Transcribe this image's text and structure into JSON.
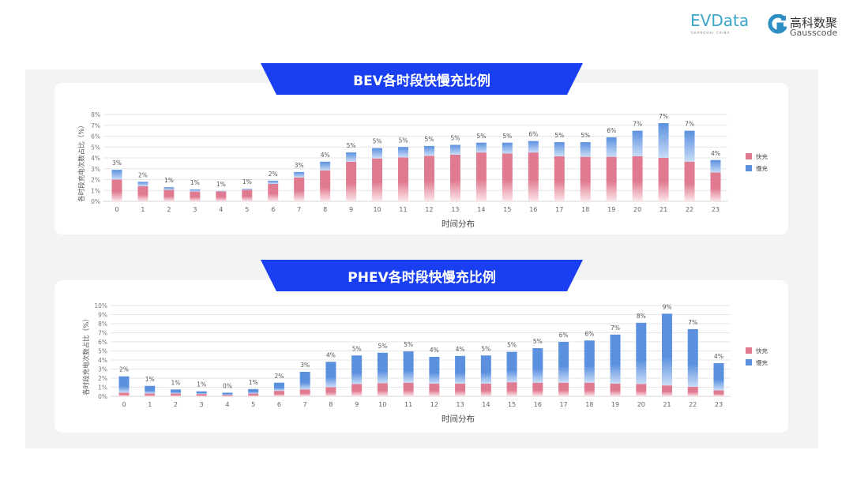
{
  "logos": {
    "evdata": "EVData",
    "evdata_sub": "SHANGHAI CHINA",
    "gauss_cn": "高科数聚",
    "gauss_en": "Gausscode"
  },
  "colors": {
    "fast": "#e07a90",
    "slow": "#5b90df",
    "banner": "#1a3ff0"
  },
  "chart_data": [
    {
      "type": "bar",
      "stacked": true,
      "title": "BEV各时段快慢充比例",
      "xlabel": "时间分布",
      "ylabel": "各时段充电次数占比（%）",
      "ylim": [
        0,
        8
      ],
      "yticks": [
        "0%",
        "1%",
        "2%",
        "3%",
        "4%",
        "5%",
        "6%",
        "7%",
        "8%"
      ],
      "grid": true,
      "legend_position": "right",
      "categories": [
        "0",
        "1",
        "2",
        "3",
        "4",
        "5",
        "6",
        "7",
        "8",
        "9",
        "10",
        "11",
        "12",
        "13",
        "14",
        "15",
        "16",
        "17",
        "18",
        "19",
        "20",
        "21",
        "22",
        "23"
      ],
      "series": [
        {
          "name": "快充",
          "values": [
            2.0,
            1.4,
            1.05,
            0.9,
            0.9,
            1.05,
            1.6,
            2.2,
            2.85,
            3.65,
            3.95,
            4.05,
            4.2,
            4.3,
            4.5,
            4.4,
            4.5,
            4.15,
            4.1,
            4.1,
            4.15,
            4.0,
            3.65,
            2.65
          ]
        },
        {
          "name": "慢充",
          "values": [
            0.9,
            0.4,
            0.25,
            0.2,
            0.05,
            0.1,
            0.3,
            0.5,
            0.8,
            0.85,
            0.95,
            0.95,
            0.9,
            0.9,
            0.9,
            1.0,
            1.05,
            1.3,
            1.35,
            1.8,
            2.35,
            3.2,
            2.85,
            1.15
          ]
        }
      ],
      "data_labels": [
        "3%",
        "2%",
        "1%",
        "1%",
        "1%",
        "1%",
        "2%",
        "3%",
        "4%",
        "5%",
        "5%",
        "5%",
        "5%",
        "5%",
        "5%",
        "5%",
        "6%",
        "5%",
        "5%",
        "6%",
        "7%",
        "7%",
        "7%",
        "4%"
      ]
    },
    {
      "type": "bar",
      "stacked": true,
      "title": "PHEV各时段快慢充比例",
      "xlabel": "时间分布",
      "ylabel": "各时段充电次数占比（%）",
      "ylim": [
        0,
        10
      ],
      "yticks": [
        "0%",
        "1%",
        "2%",
        "3%",
        "4%",
        "5%",
        "6%",
        "7%",
        "8%",
        "9%",
        "10%"
      ],
      "grid": true,
      "legend_position": "right",
      "categories": [
        "0",
        "1",
        "2",
        "3",
        "4",
        "5",
        "6",
        "7",
        "8",
        "9",
        "10",
        "11",
        "12",
        "13",
        "14",
        "15",
        "16",
        "17",
        "18",
        "19",
        "20",
        "21",
        "22",
        "23"
      ],
      "series": [
        {
          "name": "快充",
          "values": [
            0.4,
            0.3,
            0.3,
            0.25,
            0.15,
            0.3,
            0.6,
            0.75,
            1.0,
            1.35,
            1.45,
            1.5,
            1.4,
            1.4,
            1.4,
            1.55,
            1.5,
            1.5,
            1.5,
            1.4,
            1.35,
            1.2,
            1.05,
            0.65
          ]
        },
        {
          "name": "慢充",
          "values": [
            1.8,
            0.85,
            0.45,
            0.3,
            0.25,
            0.5,
            0.9,
            1.95,
            2.8,
            3.15,
            3.35,
            3.45,
            2.95,
            3.05,
            3.1,
            3.35,
            3.8,
            4.5,
            4.65,
            5.4,
            6.75,
            7.9,
            6.35,
            3.0
          ]
        }
      ],
      "data_labels": [
        "2%",
        "1%",
        "1%",
        "1%",
        "0%",
        "1%",
        "2%",
        "3%",
        "4%",
        "5%",
        "5%",
        "5%",
        "4%",
        "4%",
        "5%",
        "5%",
        "5%",
        "6%",
        "6%",
        "7%",
        "8%",
        "9%",
        "7%",
        "4%"
      ]
    }
  ]
}
